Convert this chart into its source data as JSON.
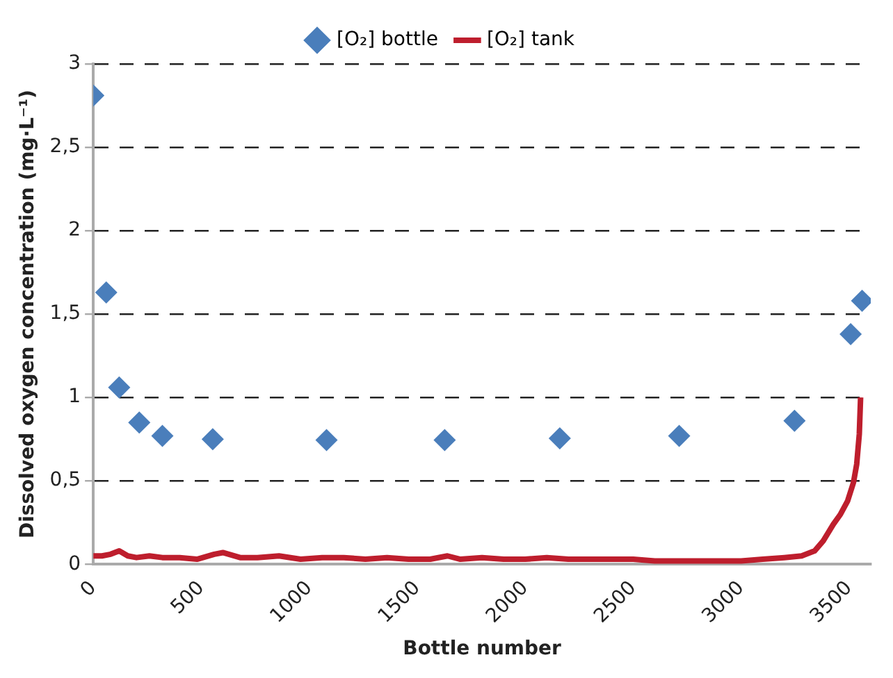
{
  "chart_data": {
    "type": "scatter",
    "xlabel": "Bottle number",
    "ylabel": "Dissolved oxygen concentration (mg·L⁻¹)",
    "xlim": [
      0,
      3600
    ],
    "xticks": [
      0,
      500,
      1000,
      1500,
      2000,
      2500,
      3000,
      3500
    ],
    "ylim": [
      0,
      3
    ],
    "yticks": [
      0,
      {
        "value": 0.5,
        "label": "0,5"
      },
      1,
      {
        "value": 1.5,
        "label": "1,5"
      },
      2,
      {
        "value": 2.5,
        "label": "2,5"
      },
      3
    ],
    "grid": "y",
    "legend": "top",
    "series": [
      {
        "name": "[O₂] bottle",
        "type": "scatter",
        "marker": "diamond",
        "color": "#4a7ebb",
        "x": [
          0,
          60,
          120,
          213,
          320,
          553,
          1080,
          1627,
          2160,
          2713,
          3247,
          3507,
          3560
        ],
        "values": [
          2.81,
          1.63,
          1.06,
          0.85,
          0.77,
          0.75,
          0.745,
          0.745,
          0.755,
          0.77,
          0.86,
          1.38,
          1.58
        ]
      },
      {
        "name": "[O₂] tank",
        "type": "line",
        "marker": "none",
        "color": "#be1e2d",
        "x": [
          0,
          40,
          80,
          120,
          160,
          200,
          260,
          320,
          400,
          480,
          560,
          600,
          680,
          760,
          860,
          960,
          1060,
          1160,
          1260,
          1360,
          1460,
          1560,
          1640,
          1700,
          1800,
          1900,
          2000,
          2100,
          2200,
          2300,
          2400,
          2500,
          2600,
          2700,
          2800,
          2900,
          3000,
          3100,
          3200,
          3280,
          3340,
          3380,
          3427,
          3460,
          3493,
          3520,
          3535,
          3547,
          3553
        ],
        "values": [
          0.05,
          0.05,
          0.06,
          0.08,
          0.05,
          0.04,
          0.05,
          0.04,
          0.04,
          0.03,
          0.06,
          0.07,
          0.04,
          0.04,
          0.05,
          0.03,
          0.04,
          0.04,
          0.03,
          0.04,
          0.03,
          0.03,
          0.05,
          0.03,
          0.04,
          0.03,
          0.03,
          0.04,
          0.03,
          0.03,
          0.03,
          0.03,
          0.02,
          0.02,
          0.02,
          0.02,
          0.02,
          0.03,
          0.04,
          0.05,
          0.08,
          0.14,
          0.24,
          0.3,
          0.38,
          0.49,
          0.6,
          0.78,
          1.0
        ]
      }
    ]
  }
}
